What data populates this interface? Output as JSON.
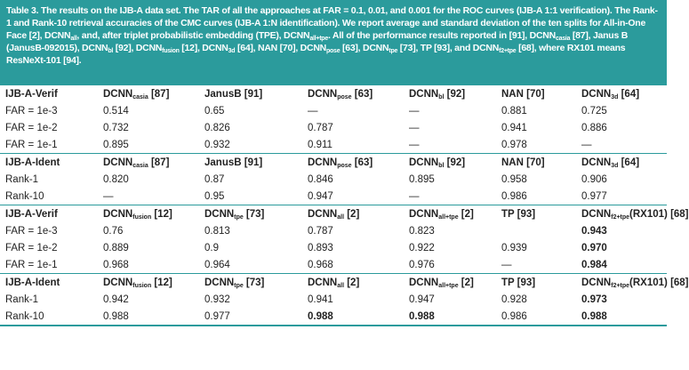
{
  "caption": [
    {
      "text": "Table 3. The results on the IJB-A data set. The TAR of all the approaches at FAR = 0.1, 0.01, and 0.001 for the ROC curves (IJB-A 1:1 verification). The Rank-1 and Rank-10 retrieval accuracies of the CMC curves (IJB-A 1:N identification). We report average and standard deviation of the ten splits for All-in-One Face [2], DCNN"
    },
    {
      "sub": "all"
    },
    {
      "text": ", and, after triplet probabilistic embedding (TPE), DCNN"
    },
    {
      "sub": "all+tpe"
    },
    {
      "text": ". All of the performance results reported in [91], DCNN"
    },
    {
      "sub": "casia"
    },
    {
      "text": " [87], Janus B (JanusB-092015), DCNN"
    },
    {
      "sub": "bl"
    },
    {
      "text": " [92], DCNN"
    },
    {
      "sub": "fusion"
    },
    {
      "text": " [12], DCNN"
    },
    {
      "sub": "3d"
    },
    {
      "text": " [64], NAN [70], DCNN"
    },
    {
      "sub": "pose"
    },
    {
      "text": " [63], DCNN"
    },
    {
      "sub": "tpe"
    },
    {
      "text": " [73], TP [93], and DCNN"
    },
    {
      "sub": "f2+tpe"
    },
    {
      "text": " [68], where RX101 means ResNeXt-101 [94]."
    }
  ],
  "sections": [
    {
      "header": [
        {
          "text": "IJB-A-Verif"
        },
        {
          "text": "DCNN",
          "sub": "casia",
          "after": " [87]"
        },
        {
          "text": "JanusB [91]"
        },
        {
          "text": "DCNN",
          "sub": "pose",
          "after": " [63]"
        },
        {
          "text": "DCNN",
          "sub": "bl",
          "after": " [92]"
        },
        {
          "text": "NAN [70]"
        },
        {
          "text": "DCNN",
          "sub": "3d",
          "after": " [64]"
        }
      ],
      "rows": [
        {
          "label": "FAR = 1e-3",
          "values": [
            "0.514",
            "0.65",
            "—",
            "—",
            "0.881",
            "0.725"
          ]
        },
        {
          "label": "FAR = 1e-2",
          "values": [
            "0.732",
            "0.826",
            "0.787",
            "—",
            "0.941",
            "0.886"
          ]
        },
        {
          "label": "FAR = 1e-1",
          "values": [
            "0.895",
            "0.932",
            "0.911",
            "—",
            "0.978",
            "—"
          ]
        }
      ]
    },
    {
      "header": [
        {
          "text": "IJB-A-Ident"
        },
        {
          "text": "DCNN",
          "sub": "casia",
          "after": " [87]"
        },
        {
          "text": "JanusB [91]"
        },
        {
          "text": "DCNN",
          "sub": "pose",
          "after": " [63]"
        },
        {
          "text": "DCNN",
          "sub": "bl",
          "after": " [92]"
        },
        {
          "text": "NAN [70]"
        },
        {
          "text": "DCNN",
          "sub": "3d",
          "after": " [64]"
        }
      ],
      "rows": [
        {
          "label": "Rank-1",
          "values": [
            "0.820",
            "0.87",
            "0.846",
            "0.895",
            "0.958",
            "0.906"
          ]
        },
        {
          "label": "Rank-10",
          "values": [
            "—",
            "0.95",
            "0.947",
            "—",
            "0.986",
            "0.977"
          ]
        }
      ]
    },
    {
      "header": [
        {
          "text": "IJB-A-Verif"
        },
        {
          "text": "DCNN",
          "sub": "fusion",
          "after": " [12]"
        },
        {
          "text": "DCNN",
          "sub": "tpe",
          "after": " [73]"
        },
        {
          "text": "DCNN",
          "sub": "all",
          "after": " [2]"
        },
        {
          "text": "DCNN",
          "sub": "all+tpe",
          "after": " [2]"
        },
        {
          "text": "TP [93]"
        },
        {
          "text": "DCNN",
          "sub": "f2+tpe",
          "after": "(RX101) [68]"
        }
      ],
      "rows": [
        {
          "label": "FAR = 1e-3",
          "values": [
            "0.76",
            "0.813",
            "0.787",
            "0.823",
            null,
            "0.943"
          ],
          "bold": [
            5
          ]
        },
        {
          "label": "FAR = 1e-2",
          "values": [
            "0.889",
            "0.9",
            "0.893",
            "0.922",
            "0.939",
            "0.970"
          ],
          "bold": [
            5
          ]
        },
        {
          "label": "FAR = 1e-1",
          "values": [
            "0.968",
            "0.964",
            "0.968",
            "0.976",
            "—",
            "0.984"
          ],
          "bold": [
            5
          ]
        }
      ]
    },
    {
      "header": [
        {
          "text": "IJB-A-Ident"
        },
        {
          "text": "DCNN",
          "sub": "fusion",
          "after": " [12]"
        },
        {
          "text": "DCNN",
          "sub": "tpe",
          "after": " [73]"
        },
        {
          "text": "DCNN",
          "sub": "all",
          "after": " [2]"
        },
        {
          "text": "DCNN",
          "sub": "all+tpe",
          "after": " [2]"
        },
        {
          "text": "TP [93]"
        },
        {
          "text": "DCNN",
          "sub": "f2+tpe",
          "after": "(RX101) [68]"
        }
      ],
      "rows": [
        {
          "label": "Rank-1",
          "values": [
            "0.942",
            "0.932",
            "0.941",
            "0.947",
            "0.928",
            "0.973"
          ],
          "bold": [
            5
          ]
        },
        {
          "label": "Rank-10",
          "values": [
            "0.988",
            "0.977",
            "0.988",
            "0.988",
            "0.986",
            "0.988"
          ],
          "bold": [
            2,
            3,
            5
          ]
        }
      ]
    }
  ]
}
